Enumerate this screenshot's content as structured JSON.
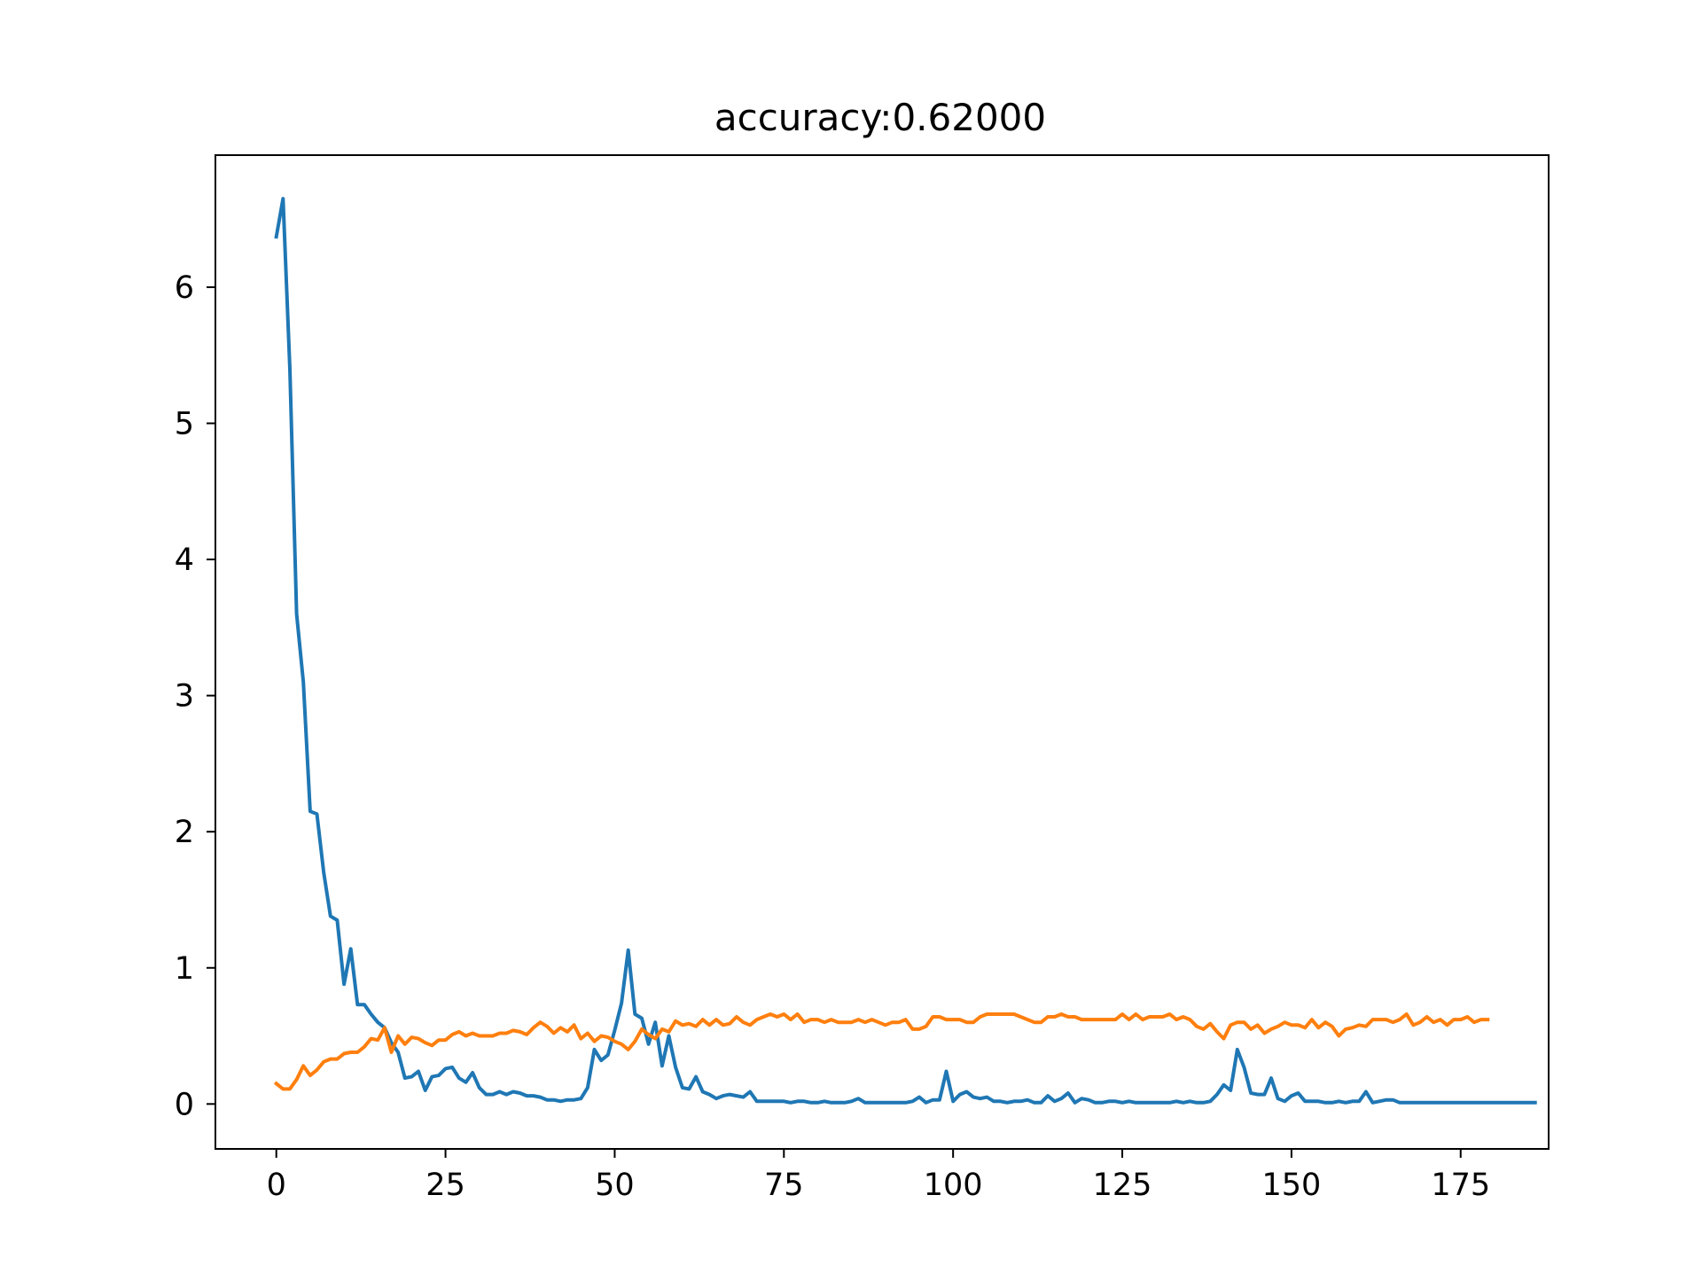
{
  "chart_data": {
    "type": "line",
    "title": "accuracy:0.62000",
    "xlabel": "",
    "ylabel": "",
    "xlim": [
      -9,
      188
    ],
    "ylim": [
      -0.33,
      6.97
    ],
    "xticks": [
      0,
      25,
      50,
      75,
      100,
      125,
      150,
      175
    ],
    "yticks": [
      0,
      1,
      2,
      3,
      4,
      5,
      6
    ],
    "grid": false,
    "legend": "none",
    "x_start": 0,
    "series": [
      {
        "color": "#1f77b4",
        "values": [
          6.37,
          6.65,
          5.4,
          3.6,
          3.1,
          2.15,
          2.13,
          1.7,
          1.38,
          1.35,
          0.88,
          1.14,
          0.73,
          0.73,
          0.66,
          0.6,
          0.56,
          0.45,
          0.38,
          0.19,
          0.2,
          0.24,
          0.1,
          0.2,
          0.21,
          0.26,
          0.27,
          0.19,
          0.16,
          0.23,
          0.12,
          0.07,
          0.07,
          0.09,
          0.07,
          0.09,
          0.08,
          0.06,
          0.06,
          0.05,
          0.03,
          0.03,
          0.02,
          0.03,
          0.03,
          0.04,
          0.12,
          0.4,
          0.32,
          0.36,
          0.54,
          0.74,
          1.13,
          0.66,
          0.63,
          0.44,
          0.6,
          0.28,
          0.5,
          0.27,
          0.12,
          0.11,
          0.2,
          0.09,
          0.07,
          0.04,
          0.06,
          0.07,
          0.06,
          0.05,
          0.09,
          0.02,
          0.02,
          0.02,
          0.02,
          0.02,
          0.01,
          0.02,
          0.02,
          0.01,
          0.01,
          0.02,
          0.01,
          0.01,
          0.01,
          0.02,
          0.04,
          0.01,
          0.01,
          0.01,
          0.01,
          0.01,
          0.01,
          0.01,
          0.02,
          0.05,
          0.01,
          0.03,
          0.03,
          0.24,
          0.02,
          0.07,
          0.09,
          0.05,
          0.04,
          0.05,
          0.02,
          0.02,
          0.01,
          0.02,
          0.02,
          0.03,
          0.01,
          0.01,
          0.06,
          0.02,
          0.04,
          0.08,
          0.01,
          0.04,
          0.03,
          0.01,
          0.01,
          0.02,
          0.02,
          0.01,
          0.02,
          0.01,
          0.01,
          0.01,
          0.01,
          0.01,
          0.01,
          0.02,
          0.01,
          0.02,
          0.01,
          0.01,
          0.02,
          0.07,
          0.14,
          0.1,
          0.4,
          0.27,
          0.08,
          0.07,
          0.07,
          0.19,
          0.04,
          0.02,
          0.06,
          0.08,
          0.02,
          0.02,
          0.02,
          0.01,
          0.01,
          0.02,
          0.01,
          0.02,
          0.02,
          0.09,
          0.01,
          0.02,
          0.03,
          0.03,
          0.01,
          0.01,
          0.01,
          0.01,
          0.01,
          0.01,
          0.01,
          0.01,
          0.01,
          0.01,
          0.01,
          0.01,
          0.01,
          0.01,
          0.01,
          0.01,
          0.01,
          0.01,
          0.01,
          0.01,
          0.01
        ]
      },
      {
        "color": "#ff7f0e",
        "values": [
          0.15,
          0.11,
          0.11,
          0.18,
          0.28,
          0.21,
          0.25,
          0.31,
          0.33,
          0.33,
          0.37,
          0.38,
          0.38,
          0.42,
          0.48,
          0.47,
          0.56,
          0.38,
          0.5,
          0.44,
          0.49,
          0.48,
          0.45,
          0.43,
          0.47,
          0.47,
          0.51,
          0.53,
          0.5,
          0.52,
          0.5,
          0.5,
          0.5,
          0.52,
          0.52,
          0.54,
          0.53,
          0.51,
          0.56,
          0.6,
          0.57,
          0.52,
          0.56,
          0.53,
          0.58,
          0.48,
          0.52,
          0.46,
          0.5,
          0.49,
          0.46,
          0.44,
          0.4,
          0.46,
          0.55,
          0.51,
          0.48,
          0.55,
          0.53,
          0.61,
          0.58,
          0.59,
          0.57,
          0.62,
          0.58,
          0.62,
          0.58,
          0.59,
          0.64,
          0.6,
          0.58,
          0.62,
          0.64,
          0.66,
          0.64,
          0.66,
          0.62,
          0.66,
          0.6,
          0.62,
          0.62,
          0.6,
          0.62,
          0.6,
          0.6,
          0.6,
          0.62,
          0.6,
          0.62,
          0.6,
          0.58,
          0.6,
          0.6,
          0.62,
          0.55,
          0.55,
          0.57,
          0.64,
          0.64,
          0.62,
          0.62,
          0.62,
          0.6,
          0.6,
          0.64,
          0.66,
          0.66,
          0.66,
          0.66,
          0.66,
          0.64,
          0.62,
          0.6,
          0.6,
          0.64,
          0.64,
          0.66,
          0.64,
          0.64,
          0.62,
          0.62,
          0.62,
          0.62,
          0.62,
          0.62,
          0.66,
          0.62,
          0.66,
          0.62,
          0.64,
          0.64,
          0.64,
          0.66,
          0.62,
          0.64,
          0.62,
          0.57,
          0.55,
          0.59,
          0.53,
          0.48,
          0.58,
          0.6,
          0.6,
          0.55,
          0.58,
          0.52,
          0.55,
          0.57,
          0.6,
          0.58,
          0.58,
          0.56,
          0.62,
          0.56,
          0.6,
          0.57,
          0.5,
          0.55,
          0.56,
          0.58,
          0.57,
          0.62,
          0.62,
          0.62,
          0.6,
          0.62,
          0.66,
          0.58,
          0.6,
          0.64,
          0.6,
          0.62,
          0.58,
          0.62,
          0.62,
          0.64,
          0.6,
          0.62,
          0.62
        ]
      }
    ]
  }
}
